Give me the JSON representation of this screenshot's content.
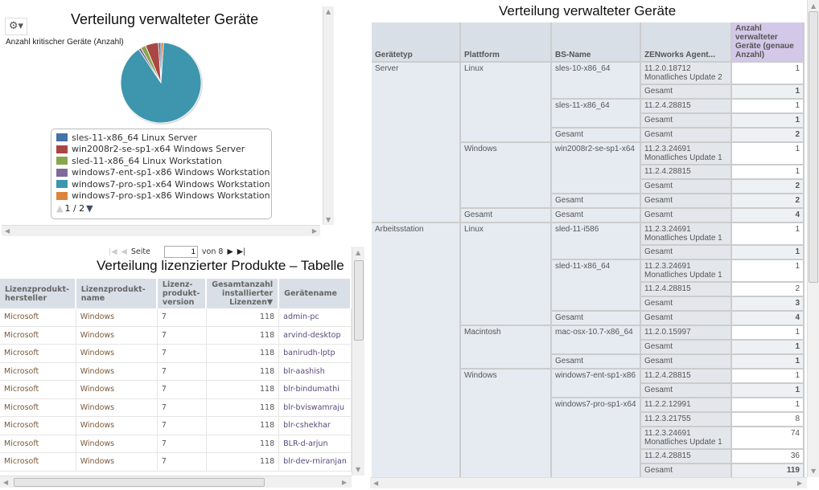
{
  "pie_panel": {
    "title": "Verteilung verwalteter Geräte",
    "subtitle": "Anzahl kritischer Geräte (Anzahl)",
    "settings_icon": "gear-icon",
    "legend_page": "1 / 2",
    "chart_data": {
      "type": "pie",
      "title": "Verteilung verwalteter Geräte",
      "subtitle": "Anzahl kritischer Geräte (Anzahl)",
      "legend_position": "bottom",
      "series": [
        {
          "name": "sles-11-x86_64 Linux Server",
          "value": 1,
          "color": "#4572a7"
        },
        {
          "name": "win2008r2-se-sp1-x64 Windows Server",
          "value": 5,
          "color": "#aa4643"
        },
        {
          "name": "sled-11-x86_64 Linux Workstation",
          "value": 2,
          "color": "#89a54e"
        },
        {
          "name": "windows7-ent-sp1-x86 Windows Workstation",
          "value": 1,
          "color": "#80699b"
        },
        {
          "name": "windows7-pro-sp1-x64 Windows Workstation",
          "value": 86,
          "color": "#3d96ae"
        },
        {
          "name": "windows7-pro-sp1-x86 Windows Workstation",
          "value": 1,
          "color": "#db843d"
        }
      ]
    }
  },
  "license_panel": {
    "title": "Verteilung lizenzierter Produkte – Tabelle",
    "pager": {
      "page_label": "Seite",
      "page": "1",
      "of_label": "von 8"
    },
    "columns": [
      "Lizenzprodukt-hersteller",
      "Lizenzprodukt-name",
      "Lizenz-produkt-version",
      "Gesamtanzahl installierter Lizenzen▼",
      "Gerätename"
    ],
    "rows": [
      [
        "Microsoft",
        "Windows",
        "7",
        "118",
        "admin-pc"
      ],
      [
        "Microsoft",
        "Windows",
        "7",
        "118",
        "arvind-desktop"
      ],
      [
        "Microsoft",
        "Windows",
        "7",
        "118",
        "banirudh-lptp"
      ],
      [
        "Microsoft",
        "Windows",
        "7",
        "118",
        "blr-aashish"
      ],
      [
        "Microsoft",
        "Windows",
        "7",
        "118",
        "blr-bindumathi"
      ],
      [
        "Microsoft",
        "Windows",
        "7",
        "118",
        "blr-bviswamraju"
      ],
      [
        "Microsoft",
        "Windows",
        "7",
        "118",
        "blr-cshekhar"
      ],
      [
        "Microsoft",
        "Windows",
        "7",
        "118",
        "BLR-d-arjun"
      ],
      [
        "Microsoft",
        "Windows",
        "7",
        "118",
        "blr-dev-rniranjan"
      ]
    ]
  },
  "device_panel": {
    "title": "Verteilung verwalteter Geräte",
    "columns": [
      "Gerätetyp",
      "Plattform",
      "BS-Name",
      "ZENworks Agent...",
      "Anzahl verwalteter Geräte (genaue Anzahl)"
    ],
    "groups": [
      {
        "name": "Server",
        "platforms": [
          {
            "name": "Linux",
            "os": [
              {
                "name": "sles-10-x86_64",
                "agents": [
                  {
                    "agent": "11.2.0.18712 Monatliches Update 2",
                    "count": "1"
                  },
                  {
                    "agent": "Gesamt",
                    "count": "1",
                    "total": true
                  }
                ]
              },
              {
                "name": "sles-11-x86_64",
                "agents": [
                  {
                    "agent": "11.2.4.28815",
                    "count": "1"
                  },
                  {
                    "agent": "Gesamt",
                    "count": "1",
                    "total": true
                  }
                ]
              },
              {
                "name": "Gesamt",
                "agents": [
                  {
                    "agent": "Gesamt",
                    "count": "2",
                    "total": true
                  }
                ]
              }
            ]
          },
          {
            "name": "Windows",
            "os": [
              {
                "name": "win2008r2-se-sp1-x64",
                "agents": [
                  {
                    "agent": "11.2.3.24691 Monatliches Update 1",
                    "count": "1"
                  },
                  {
                    "agent": "11.2.4.28815",
                    "count": "1"
                  },
                  {
                    "agent": "Gesamt",
                    "count": "2",
                    "total": true
                  }
                ]
              },
              {
                "name": "Gesamt",
                "agents": [
                  {
                    "agent": "Gesamt",
                    "count": "2",
                    "total": true
                  }
                ]
              }
            ]
          },
          {
            "name": "Gesamt",
            "os": [
              {
                "name": "Gesamt",
                "agents": [
                  {
                    "agent": "Gesamt",
                    "count": "4",
                    "total": true
                  }
                ]
              }
            ]
          }
        ]
      },
      {
        "name": "Arbeitsstation",
        "platforms": [
          {
            "name": "Linux",
            "os": [
              {
                "name": "sled-11-i586",
                "agents": [
                  {
                    "agent": "11.2.3.24691 Monatliches Update 1",
                    "count": "1"
                  },
                  {
                    "agent": "Gesamt",
                    "count": "1",
                    "total": true
                  }
                ]
              },
              {
                "name": "sled-11-x86_64",
                "agents": [
                  {
                    "agent": "11.2.3.24691 Monatliches Update 1",
                    "count": "1"
                  },
                  {
                    "agent": "11.2.4.28815",
                    "count": "2"
                  },
                  {
                    "agent": "Gesamt",
                    "count": "3",
                    "total": true
                  }
                ]
              },
              {
                "name": "Gesamt",
                "agents": [
                  {
                    "agent": "Gesamt",
                    "count": "4",
                    "total": true
                  }
                ]
              }
            ]
          },
          {
            "name": "Macintosh",
            "os": [
              {
                "name": "mac-osx-10.7-x86_64",
                "agents": [
                  {
                    "agent": "11.2.0.15997",
                    "count": "1"
                  },
                  {
                    "agent": "Gesamt",
                    "count": "1",
                    "total": true
                  }
                ]
              },
              {
                "name": "Gesamt",
                "agents": [
                  {
                    "agent": "Gesamt",
                    "count": "1",
                    "total": true
                  }
                ]
              }
            ]
          },
          {
            "name": "Windows",
            "os": [
              {
                "name": "windows7-ent-sp1-x86",
                "agents": [
                  {
                    "agent": "11.2.4.28815",
                    "count": "1"
                  },
                  {
                    "agent": "Gesamt",
                    "count": "1",
                    "total": true
                  }
                ]
              },
              {
                "name": "windows7-pro-sp1-x64",
                "agents": [
                  {
                    "agent": "11.2.2.12991",
                    "count": "1"
                  },
                  {
                    "agent": "11.2.3.21755",
                    "count": "8"
                  },
                  {
                    "agent": "11.2.3.24691 Monatliches Update 1",
                    "count": "74"
                  },
                  {
                    "agent": "11.2.4.28815",
                    "count": "36"
                  },
                  {
                    "agent": "Gesamt",
                    "count": "119",
                    "total": true
                  }
                ]
              }
            ]
          }
        ]
      }
    ]
  }
}
